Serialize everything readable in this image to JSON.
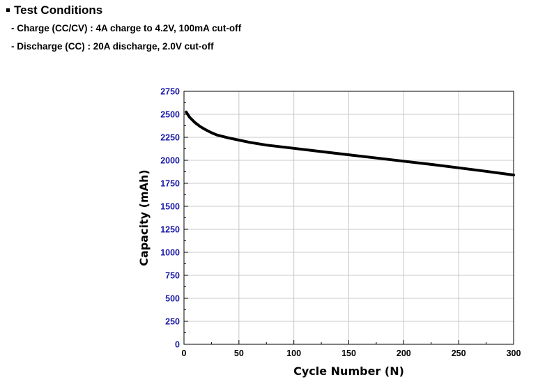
{
  "conditions": {
    "title": "Test Conditions",
    "charge": "- Charge (CC/CV) : 4A charge to 4.2V, 100mA cut-off",
    "discharge": "- Discharge (CC) : 20A discharge, 2.0V cut-off"
  },
  "chart_data": {
    "type": "line",
    "title": "",
    "xlabel": "Cycle Number (N)",
    "ylabel": "Capacity (mAh)",
    "xlim": [
      0,
      300
    ],
    "ylim": [
      0,
      2750
    ],
    "xticks": [
      0,
      50,
      100,
      150,
      200,
      250,
      300
    ],
    "yticks": [
      0,
      250,
      500,
      750,
      1000,
      1250,
      1500,
      1750,
      2000,
      2250,
      2500,
      2750
    ],
    "grid": true,
    "legend": "none",
    "colors": {
      "line": "#000000",
      "ytick": "#1a1aa6",
      "xtick": "#000000",
      "grid": "#c8c8c8"
    },
    "series": [
      {
        "x": [
          2,
          5,
          10,
          15,
          20,
          25,
          30,
          40,
          50,
          60,
          75,
          100,
          125,
          150,
          175,
          200,
          225,
          250,
          275,
          300
        ],
        "values": [
          2525,
          2470,
          2410,
          2365,
          2330,
          2300,
          2275,
          2245,
          2220,
          2195,
          2165,
          2130,
          2095,
          2060,
          2025,
          1990,
          1955,
          1918,
          1880,
          1840
        ]
      }
    ]
  }
}
